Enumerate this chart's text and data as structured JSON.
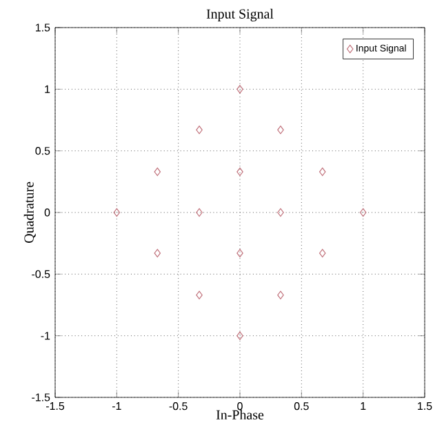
{
  "chart_data": {
    "type": "scatter",
    "title": "Input Signal",
    "xlabel": "In-Phase",
    "ylabel": "Quadrature",
    "xlim": [
      -1.5,
      1.5
    ],
    "ylim": [
      -1.5,
      1.5
    ],
    "xticks": [
      -1.5,
      -1,
      -0.5,
      0,
      0.5,
      1,
      1.5
    ],
    "yticks": [
      -1.5,
      -1,
      -0.5,
      0,
      0.5,
      1,
      1.5
    ],
    "grid": true,
    "legend": "top right",
    "marker": "diamond",
    "series": [
      {
        "name": "Input Signal",
        "color": "#c0707a",
        "x": [
          0,
          -0.33,
          0.33,
          -0.67,
          0,
          0.67,
          -1,
          -0.33,
          0.33,
          1,
          -0.67,
          0,
          0.67,
          -0.33,
          0.33,
          0
        ],
        "values": [
          1,
          0.67,
          0.67,
          0.33,
          0.33,
          0.33,
          0,
          0,
          0,
          0,
          -0.33,
          -0.33,
          -0.33,
          -0.67,
          -0.67,
          -1
        ]
      }
    ]
  }
}
